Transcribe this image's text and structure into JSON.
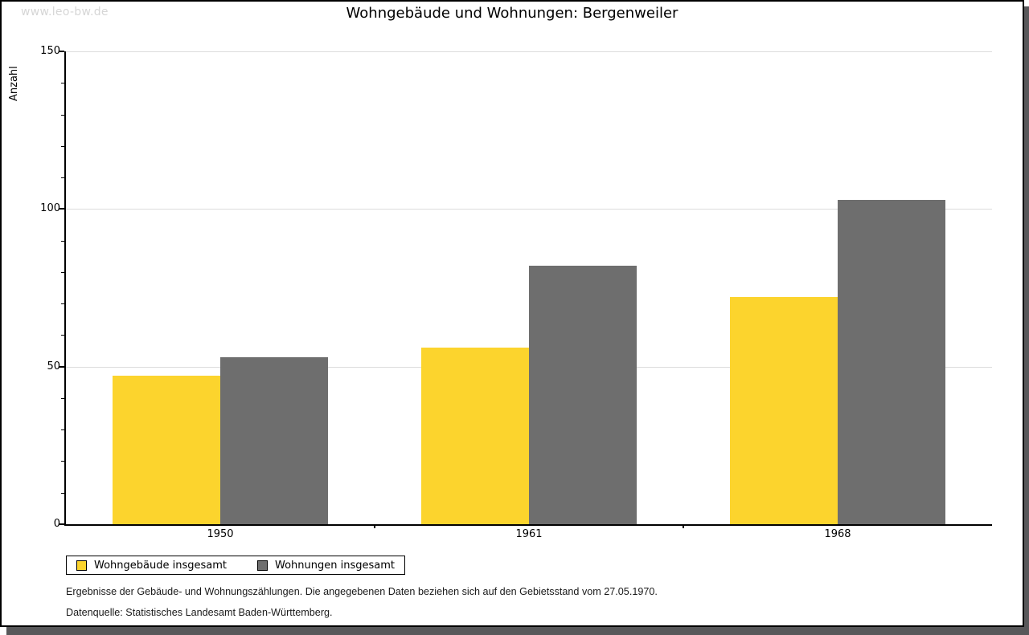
{
  "watermark": "www.leo-bw.de",
  "chart_data": {
    "type": "bar",
    "title": "Wohngebäude und Wohnungen: Bergenweiler",
    "ylabel": "Anzahl",
    "xlabel": "",
    "categories": [
      "1950",
      "1961",
      "1968"
    ],
    "series": [
      {
        "name": "Wohngebäude insgesamt",
        "color": "#fcd42d",
        "values": [
          47,
          56,
          72
        ]
      },
      {
        "name": "Wohnungen insgesamt",
        "color": "#6e6e6e",
        "values": [
          53,
          82,
          103
        ]
      }
    ],
    "ylim": [
      0,
      150
    ],
    "ytick_major": 50,
    "ytick_minor": 10,
    "ytick_labels": [
      "0",
      "50",
      "100",
      "150"
    ],
    "grid": true,
    "legend_position": "bottom-left"
  },
  "footnotes": {
    "line1": "Ergebnisse der Gebäude- und Wohnungszählungen. Die angegebenen Daten beziehen sich auf den Gebietsstand vom 27.05.1970.",
    "line2": "Datenquelle: Statistisches Landesamt Baden-Württemberg."
  },
  "colors": {
    "bar_yellow": "#fcd42d",
    "bar_gray": "#6e6e6e",
    "gridline": "#dcdcdc",
    "axis": "#000000",
    "watermark": "#d6d6d6",
    "shadow": "#58585a",
    "background": "#ffffff"
  }
}
